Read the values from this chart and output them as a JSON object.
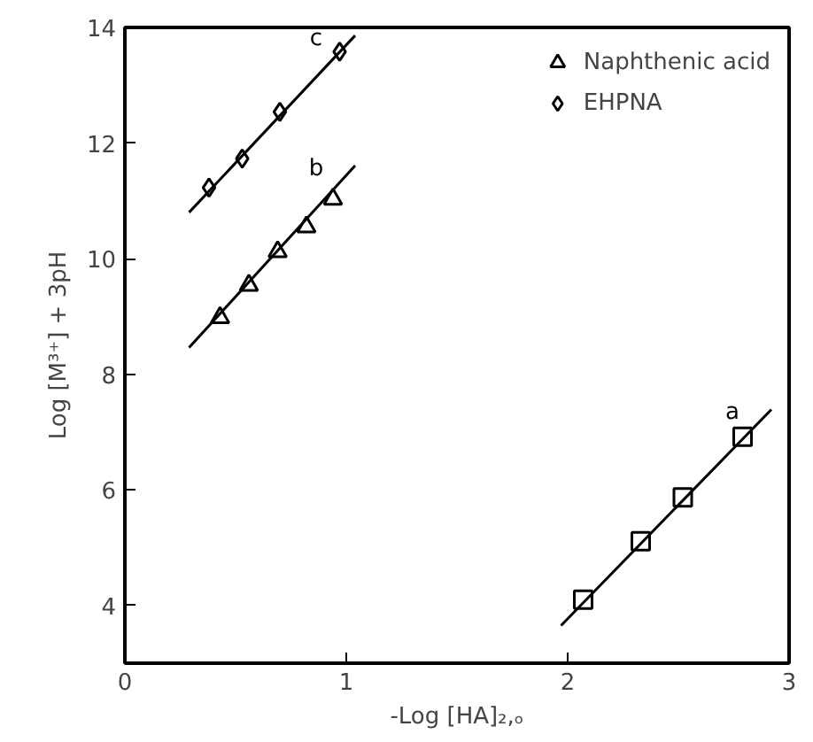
{
  "chart_data": {
    "type": "scatter",
    "xlabel": "-Log [HA]₂,ₒ",
    "ylabel": "Log [M³⁺] + 3pH",
    "xlim": [
      0,
      3
    ],
    "ylim": [
      3,
      14
    ],
    "xticks": [
      0,
      1,
      2,
      3
    ],
    "yticks": [
      4,
      6,
      8,
      10,
      12,
      14
    ],
    "grid": false,
    "legend": "top right",
    "series": [
      {
        "color": "#000000",
        "marker": "square",
        "x": [
          2.07,
          2.33,
          2.52,
          2.79
        ],
        "values": [
          4.1,
          5.11,
          5.87,
          6.92
        ]
      },
      {
        "name": "Naphthenic acid",
        "color": "#000000",
        "marker": "triangle",
        "x": [
          0.43,
          0.56,
          0.69,
          0.82,
          0.94
        ],
        "values": [
          8.98,
          9.54,
          10.12,
          10.55,
          11.03
        ]
      },
      {
        "name": "EHPNA",
        "color": "#000000",
        "marker": "diamond",
        "x": [
          0.38,
          0.53,
          0.7,
          0.97
        ],
        "values": [
          11.23,
          11.73,
          12.54,
          13.58
        ]
      },
      {
        "type": "line",
        "color": "#000000",
        "marker": "none",
        "x": [
          1.97,
          2.92
        ],
        "values": [
          3.65,
          7.39
        ]
      },
      {
        "type": "line",
        "color": "#000000",
        "marker": "none",
        "x": [
          0.29,
          1.04
        ],
        "values": [
          8.46,
          11.61
        ]
      },
      {
        "type": "line",
        "color": "#000000",
        "marker": "none",
        "x": [
          0.29,
          1.04
        ],
        "values": [
          10.8,
          13.86
        ]
      }
    ],
    "annotations": [
      "a",
      "b",
      "c"
    ]
  }
}
